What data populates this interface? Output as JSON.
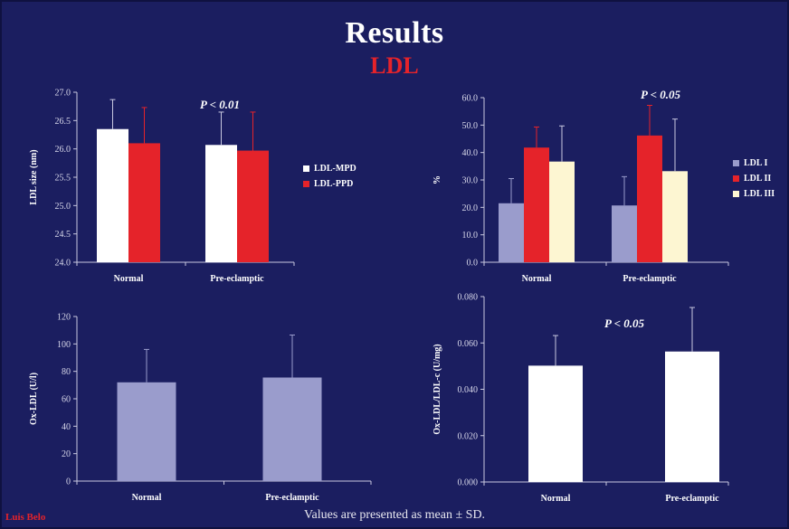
{
  "header": {
    "title": "Results",
    "subtitle": "LDL"
  },
  "footer": {
    "note": "Values are presented as mean ± SD.",
    "author": "Luis Belo"
  },
  "colors": {
    "background": "#1b1e60",
    "white": "#ffffff",
    "red": "#e5232a",
    "lavender": "#9a9ccc",
    "cream": "#fdf6d2"
  },
  "chart_data": [
    {
      "type": "bar",
      "categories": [
        "Normal",
        "Pre-eclamptic"
      ],
      "ylabel": "LDL size (nm)",
      "ylim": [
        24.0,
        27.0
      ],
      "yticks": [
        "24.0",
        "24.5",
        "25.0",
        "25.5",
        "26.0",
        "26.5",
        "27.0"
      ],
      "annotation": "P < 0.01",
      "series": [
        {
          "name": "LDL-MPD",
          "color": "#ffffff",
          "values": [
            26.35,
            26.07
          ],
          "sd": [
            0.52,
            0.58
          ]
        },
        {
          "name": "LDL-PPD",
          "color": "#e5232a",
          "values": [
            26.1,
            25.97
          ],
          "sd": [
            0.63,
            0.68
          ]
        }
      ]
    },
    {
      "type": "bar",
      "categories": [
        "Normal",
        "Pre-eclamptic"
      ],
      "ylabel": "%",
      "ylim": [
        0,
        60
      ],
      "yticks": [
        "0.0",
        "10.0",
        "20.0",
        "30.0",
        "40.0",
        "50.0",
        "60.0"
      ],
      "annotation": "P < 0.05",
      "series": [
        {
          "name": "LDL I",
          "color": "#9a9ccc",
          "values": [
            21.5,
            20.7
          ],
          "sd": [
            9.0,
            10.5
          ]
        },
        {
          "name": "LDL II",
          "color": "#e5232a",
          "values": [
            41.8,
            46.2
          ],
          "sd": [
            7.5,
            11.0
          ]
        },
        {
          "name": "LDL III",
          "color": "#fdf6d2",
          "values": [
            36.7,
            33.2
          ],
          "sd": [
            13.0,
            19.0
          ]
        }
      ]
    },
    {
      "type": "bar",
      "categories": [
        "Normal",
        "Pre-eclamptic"
      ],
      "ylabel": "Ox-LDL (U/l)",
      "ylim": [
        0,
        120
      ],
      "yticks": [
        "0",
        "20",
        "40",
        "60",
        "80",
        "100",
        "120"
      ],
      "annotation": "",
      "series": [
        {
          "name": "",
          "color": "#9a9ccc",
          "values": [
            72,
            75.5
          ],
          "sd": [
            24,
            31
          ]
        }
      ]
    },
    {
      "type": "bar",
      "categories": [
        "Normal",
        "Pre-eclamptic"
      ],
      "ylabel": "Ox-LDL/LDL-c (U/mg)",
      "ylim": [
        0,
        0.08
      ],
      "yticks": [
        "0.000",
        "0.020",
        "0.040",
        "0.060",
        "0.080"
      ],
      "annotation": "P < 0.05",
      "series": [
        {
          "name": "",
          "color": "#ffffff",
          "values": [
            0.0502,
            0.0563
          ],
          "sd": [
            0.013,
            0.019
          ]
        }
      ]
    }
  ]
}
